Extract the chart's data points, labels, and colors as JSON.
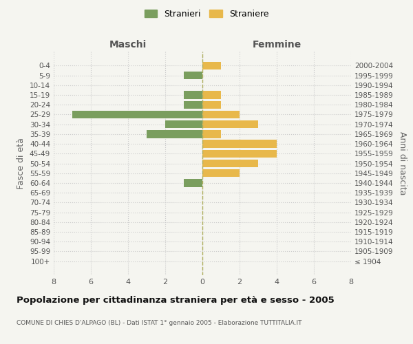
{
  "age_groups": [
    "100+",
    "95-99",
    "90-94",
    "85-89",
    "80-84",
    "75-79",
    "70-74",
    "65-69",
    "60-64",
    "55-59",
    "50-54",
    "45-49",
    "40-44",
    "35-39",
    "30-34",
    "25-29",
    "20-24",
    "15-19",
    "10-14",
    "5-9",
    "0-4"
  ],
  "birth_years": [
    "≤ 1904",
    "1905-1909",
    "1910-1914",
    "1915-1919",
    "1920-1924",
    "1925-1929",
    "1930-1934",
    "1935-1939",
    "1940-1944",
    "1945-1949",
    "1950-1954",
    "1955-1959",
    "1960-1964",
    "1965-1969",
    "1970-1974",
    "1975-1979",
    "1980-1984",
    "1985-1989",
    "1990-1994",
    "1995-1999",
    "2000-2004"
  ],
  "maschi": [
    0,
    0,
    0,
    0,
    0,
    0,
    0,
    0,
    1,
    0,
    0,
    0,
    0,
    3,
    2,
    7,
    1,
    1,
    0,
    1,
    0
  ],
  "femmine": [
    0,
    0,
    0,
    0,
    0,
    0,
    0,
    0,
    0,
    2,
    3,
    4,
    4,
    1,
    3,
    2,
    1,
    1,
    0,
    0,
    1
  ],
  "male_color": "#7a9e5e",
  "female_color": "#e8b84b",
  "background_color": "#f5f5f0",
  "grid_color": "#cccccc",
  "title": "Popolazione per cittadinanza straniera per età e sesso - 2005",
  "subtitle": "COMUNE DI CHIES D'ALPAGO (BL) - Dati ISTAT 1° gennaio 2005 - Elaborazione TUTTITALIA.IT",
  "xlabel_left": "Maschi",
  "xlabel_right": "Femmine",
  "ylabel_left": "Fasce di età",
  "ylabel_right": "Anni di nascita",
  "legend_male": "Stranieri",
  "legend_female": "Straniere",
  "xlim": 8,
  "bar_height": 0.8
}
